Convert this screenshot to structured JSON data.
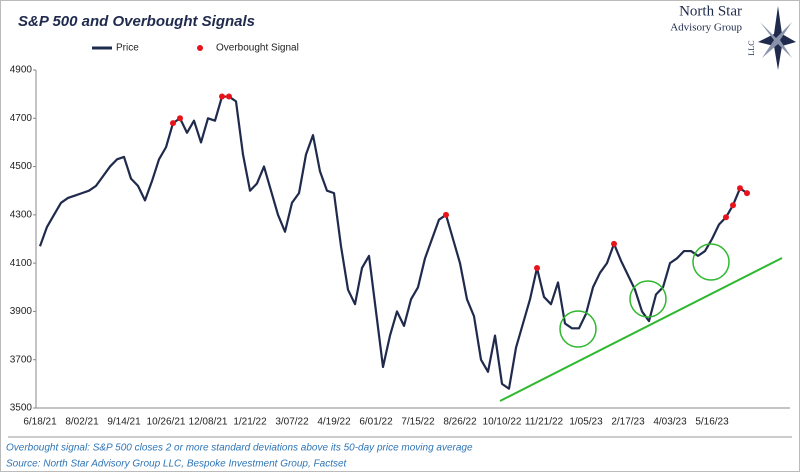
{
  "chart_data": {
    "type": "line",
    "title": "S&P 500 and Overbought Signals",
    "logo": [
      "North Star",
      "Advisory Group",
      "LLC"
    ],
    "notes": [
      "Overbought signal: S&P 500 closes 2 or more standard deviations above its 50-day price moving average",
      "Source: North Star Advisory Group LLC, Bespoke Investment Group, Factset"
    ],
    "categories": [
      "6/18/21",
      null,
      null,
      null,
      null,
      null,
      "8/02/21",
      null,
      null,
      null,
      null,
      null,
      "9/14/21",
      null,
      null,
      null,
      null,
      null,
      "10/26/21",
      null,
      null,
      null,
      null,
      null,
      "12/08/21",
      null,
      null,
      null,
      null,
      null,
      "1/21/22",
      null,
      null,
      null,
      null,
      null,
      "3/07/22",
      null,
      null,
      null,
      null,
      null,
      "4/19/22",
      null,
      null,
      null,
      null,
      null,
      "6/01/22",
      null,
      null,
      null,
      null,
      null,
      "7/15/22",
      null,
      null,
      null,
      null,
      null,
      "8/26/22",
      null,
      null,
      null,
      null,
      null,
      "10/10/22",
      null,
      null,
      null,
      null,
      null,
      "11/21/22",
      null,
      null,
      null,
      null,
      null,
      "1/05/23",
      null,
      null,
      null,
      null,
      null,
      "2/17/23",
      null,
      null,
      null,
      null,
      null,
      "4/03/23",
      null,
      null,
      null,
      null,
      null,
      "5/16/23",
      null,
      null,
      null,
      null,
      null
    ],
    "series": [
      {
        "name": "Price",
        "type": "line",
        "color": "#1f2a4d",
        "values": [
          4170,
          4250,
          4300,
          4350,
          4370,
          4380,
          4390,
          4400,
          4420,
          4460,
          4500,
          4530,
          4540,
          4450,
          4420,
          4360,
          4440,
          4530,
          4580,
          4680,
          4700,
          4640,
          4690,
          4600,
          4700,
          4690,
          4790,
          4790,
          4770,
          4550,
          4400,
          4430,
          4500,
          4400,
          4300,
          4230,
          4350,
          4390,
          4550,
          4630,
          4480,
          4400,
          4390,
          4170,
          3990,
          3930,
          4080,
          4130,
          3900,
          3670,
          3800,
          3900,
          3840,
          3950,
          4000,
          4120,
          4200,
          4280,
          4300,
          4200,
          4100,
          3950,
          3880,
          3700,
          3650,
          3800,
          3600,
          3580,
          3750,
          3850,
          3950,
          4080,
          3960,
          3930,
          4020,
          3850,
          3830,
          3830,
          3890,
          4000,
          4060,
          4100,
          4180,
          4110,
          4050,
          3990,
          3900,
          3860,
          3970,
          4000,
          4100,
          4120,
          4150,
          4150,
          4130,
          4150,
          4200,
          4260,
          4290,
          4340,
          4410,
          4390
        ]
      },
      {
        "name": "Overbought Signal",
        "type": "scatter",
        "color": "#e8141c",
        "values": [
          null,
          null,
          null,
          null,
          null,
          null,
          null,
          null,
          null,
          null,
          null,
          null,
          null,
          null,
          null,
          null,
          null,
          null,
          null,
          4680,
          4700,
          null,
          null,
          null,
          null,
          null,
          4790,
          4790,
          null,
          null,
          null,
          null,
          null,
          null,
          null,
          null,
          null,
          null,
          null,
          null,
          null,
          null,
          null,
          null,
          null,
          null,
          null,
          null,
          null,
          null,
          null,
          null,
          null,
          null,
          null,
          null,
          null,
          null,
          4300,
          null,
          null,
          null,
          null,
          null,
          null,
          null,
          null,
          null,
          null,
          null,
          null,
          4080,
          null,
          null,
          null,
          null,
          null,
          null,
          null,
          null,
          null,
          null,
          4180,
          null,
          null,
          null,
          null,
          null,
          null,
          null,
          null,
          null,
          null,
          null,
          null,
          null,
          null,
          null,
          4290,
          4340,
          4410,
          4390
        ]
      }
    ],
    "ylim": [
      3500,
      4900
    ],
    "yticks": [
      3500,
      3700,
      3900,
      4100,
      4300,
      4500,
      4700,
      4900
    ],
    "grid": false
  }
}
